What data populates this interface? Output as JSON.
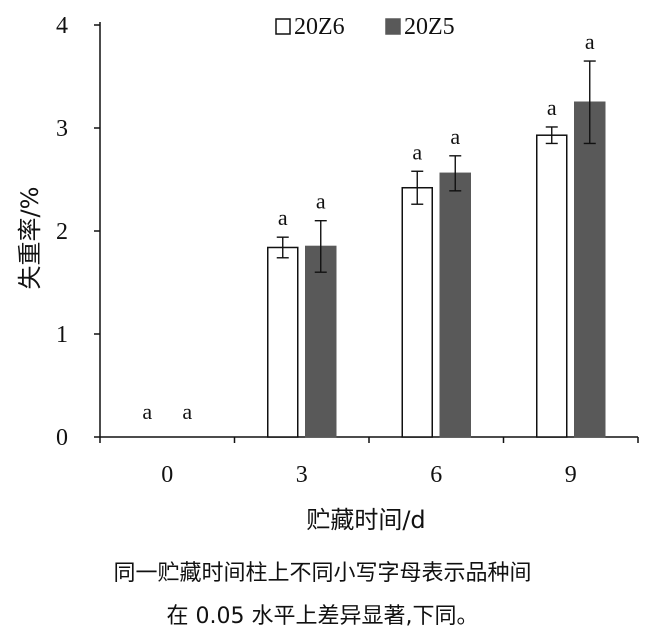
{
  "chart_data": {
    "type": "bar",
    "xlabel": "贮藏时间/d",
    "ylabel": "失重率/%",
    "categories": [
      "0",
      "3",
      "6",
      "9"
    ],
    "ylim": [
      0,
      4
    ],
    "yticks": [
      "0",
      "1",
      "2",
      "3",
      "4"
    ],
    "grid": false,
    "legend_position": "top",
    "series": [
      {
        "name": "20Z6",
        "style": "hollow",
        "color": "#ffffff",
        "edge_color": "#111111",
        "values": [
          0,
          1.84,
          2.42,
          2.93
        ],
        "errors": [
          0,
          0.1,
          0.16,
          0.08
        ],
        "significance": [
          "a",
          "a",
          "a",
          "a"
        ]
      },
      {
        "name": "20Z5",
        "style": "filled",
        "color": "#595959",
        "edge_color": "#595959",
        "values": [
          0,
          1.85,
          2.56,
          3.25
        ],
        "errors": [
          0,
          0.25,
          0.17,
          0.4
        ],
        "significance": [
          "a",
          "a",
          "a",
          "a"
        ]
      }
    ]
  },
  "caption": {
    "line1": "同一贮藏时间柱上不同小写字母表示品种间",
    "line2": "在 0.05 水平上差异显著,下同。"
  }
}
